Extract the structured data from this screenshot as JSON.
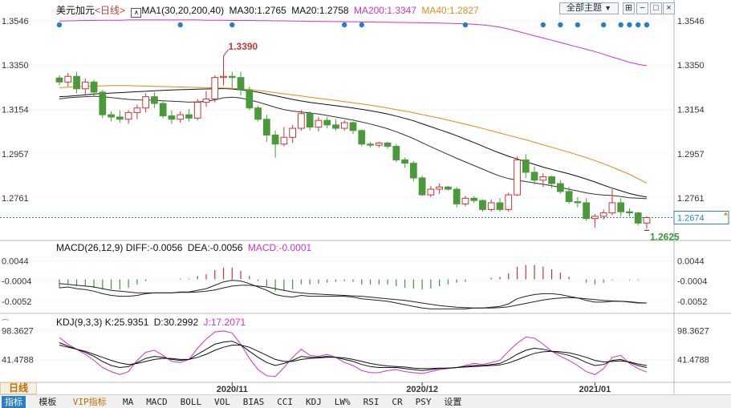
{
  "colors": {
    "up": "#cc3333",
    "down": "#4a9a3a",
    "ma1": "#111111",
    "ma30": "#111111",
    "ma20": "#333333",
    "ma200": "#cc33cc",
    "ma40": "#e08a1e",
    "diff": "#222222",
    "dea": "#222222",
    "macd_up": "#cc3333",
    "macd_down": "#3a9a3a",
    "k": "#111111",
    "d": "#111111",
    "j": "#cc33cc",
    "event_dot": "#2a7ec6",
    "last_price_box": "#2a7ec6",
    "highlight_label": "#c23b3b",
    "low_label": "#3a9a3a",
    "grid": "#dddddd"
  },
  "header": {
    "symbol": "美元加元",
    "period": "<日线>",
    "ma_main": "MA1(30,20,200,40)",
    "ma30": "MA30:1.2765",
    "ma20": "MA20:1.2758",
    "ma200": "MA200:1.3347",
    "ma40": "MA40:1.2827",
    "theme_select": "全部主题",
    "theme_arrow": "▼"
  },
  "macd_header": {
    "title": "MACD(26,12,9)",
    "diff": "DIFF:-0.0056",
    "dea": "DEA:-0.0056",
    "macd": "MACD:-0.0001"
  },
  "kdj_header": {
    "title": "KDJ(9,3,3)",
    "k": "K:25.9351",
    "d": "D:30.2992",
    "j": "J:17.2071"
  },
  "period_badge": "日线",
  "bottom_tabs": [
    "指标",
    "模板",
    "VIP指标",
    "MA",
    "MACD",
    "BOLL",
    "VOL",
    "BIAS",
    "CCI",
    "KDJ",
    "LW%",
    "RSI",
    "CR",
    "PSY",
    "设置"
  ],
  "chart_data": {
    "type": "candlestick",
    "title": "美元加元",
    "x_labels": [
      "2020/11",
      "2020/12",
      "2021/01"
    ],
    "price_axis": [
      "1.3546",
      "1.3350",
      "1.3154",
      "1.2957",
      "1.2761"
    ],
    "price_ylim": [
      1.258,
      1.361
    ],
    "last_price": "1.2674",
    "high_label": "1.3390",
    "low_label": "1.2625",
    "candles": [
      [
        1.3293,
        1.3305,
        1.326,
        1.3275
      ],
      [
        1.3275,
        1.3315,
        1.3255,
        1.33
      ],
      [
        1.33,
        1.332,
        1.3225,
        1.3245
      ],
      [
        1.3245,
        1.329,
        1.3215,
        1.3275
      ],
      [
        1.3275,
        1.3285,
        1.321,
        1.323
      ],
      [
        1.323,
        1.324,
        1.3115,
        1.313
      ],
      [
        1.313,
        1.3145,
        1.31,
        1.312
      ],
      [
        1.312,
        1.315,
        1.3095,
        1.311
      ],
      [
        1.311,
        1.315,
        1.309,
        1.314
      ],
      [
        1.314,
        1.3175,
        1.311,
        1.316
      ],
      [
        1.316,
        1.3225,
        1.314,
        1.321
      ],
      [
        1.321,
        1.323,
        1.316,
        1.318
      ],
      [
        1.318,
        1.3195,
        1.3115,
        1.3125
      ],
      [
        1.3125,
        1.315,
        1.309,
        1.311
      ],
      [
        1.311,
        1.3145,
        1.3095,
        1.313
      ],
      [
        1.313,
        1.3155,
        1.31,
        1.3115
      ],
      [
        1.3115,
        1.32,
        1.3105,
        1.3185
      ],
      [
        1.3185,
        1.3235,
        1.3165,
        1.32
      ],
      [
        1.32,
        1.3305,
        1.3185,
        1.3295
      ],
      [
        1.3295,
        1.339,
        1.326,
        1.33
      ],
      [
        1.33,
        1.332,
        1.325,
        1.3295
      ],
      [
        1.3295,
        1.332,
        1.3215,
        1.324
      ],
      [
        1.324,
        1.3255,
        1.315,
        1.316
      ],
      [
        1.316,
        1.317,
        1.31,
        1.311
      ],
      [
        1.311,
        1.313,
        1.301,
        1.304
      ],
      [
        1.304,
        1.306,
        1.294,
        1.3
      ],
      [
        1.3,
        1.3075,
        1.299,
        1.303
      ],
      [
        1.303,
        1.3085,
        1.3005,
        1.307
      ],
      [
        1.307,
        1.315,
        1.306,
        1.3135
      ],
      [
        1.3135,
        1.3145,
        1.306,
        1.3075
      ],
      [
        1.3075,
        1.312,
        1.3055,
        1.3105
      ],
      [
        1.3105,
        1.312,
        1.307,
        1.3085
      ],
      [
        1.3085,
        1.311,
        1.306,
        1.307
      ],
      [
        1.307,
        1.3105,
        1.306,
        1.3095
      ],
      [
        1.3095,
        1.31,
        1.3045,
        1.306
      ],
      [
        1.306,
        1.3065,
        1.299,
        1.3
      ],
      [
        1.3,
        1.301,
        1.2985,
        1.2995
      ],
      [
        1.2995,
        1.301,
        1.2985,
        1.3005
      ],
      [
        1.3005,
        1.301,
        1.298,
        1.299
      ],
      [
        1.299,
        1.3,
        1.292,
        1.293
      ],
      [
        1.293,
        1.294,
        1.2895,
        1.2915
      ],
      [
        1.2915,
        1.2925,
        1.2835,
        1.285
      ],
      [
        1.285,
        1.286,
        1.277,
        1.2775
      ],
      [
        1.2775,
        1.2815,
        1.2765,
        1.28
      ],
      [
        1.28,
        1.2825,
        1.278,
        1.281
      ],
      [
        1.281,
        1.2815,
        1.2795,
        1.28
      ],
      [
        1.28,
        1.281,
        1.272,
        1.2735
      ],
      [
        1.2735,
        1.277,
        1.2725,
        1.276
      ],
      [
        1.276,
        1.277,
        1.274,
        1.275
      ],
      [
        1.275,
        1.2755,
        1.27,
        1.271
      ],
      [
        1.271,
        1.2755,
        1.27,
        1.274
      ],
      [
        1.274,
        1.276,
        1.27,
        1.271
      ],
      [
        1.271,
        1.2785,
        1.27,
        1.2775
      ],
      [
        1.2775,
        1.2945,
        1.277,
        1.293
      ],
      [
        1.293,
        1.2955,
        1.285,
        1.2875
      ],
      [
        1.2875,
        1.29,
        1.282,
        1.284
      ],
      [
        1.284,
        1.287,
        1.281,
        1.2855
      ],
      [
        1.2855,
        1.286,
        1.2805,
        1.2825
      ],
      [
        1.2825,
        1.284,
        1.278,
        1.279
      ],
      [
        1.279,
        1.281,
        1.2735,
        1.2745
      ],
      [
        1.2745,
        1.2765,
        1.272,
        1.274
      ],
      [
        1.274,
        1.276,
        1.266,
        1.267
      ],
      [
        1.267,
        1.269,
        1.263,
        1.268
      ],
      [
        1.268,
        1.271,
        1.2665,
        1.2695
      ],
      [
        1.2695,
        1.28,
        1.2685,
        1.274
      ],
      [
        1.274,
        1.276,
        1.268,
        1.27
      ],
      [
        1.27,
        1.2715,
        1.268,
        1.2695
      ],
      [
        1.2695,
        1.27,
        1.264,
        1.265
      ],
      [
        1.265,
        1.268,
        1.2625,
        1.2674
      ]
    ],
    "ma_lines": {
      "MA30": [
        1.321,
        1.3212,
        1.3215,
        1.3218,
        1.3222,
        1.3224,
        1.3226,
        1.3228,
        1.323,
        1.3232,
        1.3234,
        1.3236,
        1.3238,
        1.324,
        1.3241,
        1.3242,
        1.3243,
        1.3244,
        1.3245,
        1.3246,
        1.3244,
        1.324,
        1.3236,
        1.323,
        1.3222,
        1.3214,
        1.3206,
        1.3198,
        1.3191,
        1.3185,
        1.318,
        1.3175,
        1.317,
        1.3165,
        1.316,
        1.3154,
        1.3148,
        1.3141,
        1.3133,
        1.3124,
        1.3114,
        1.3103,
        1.309,
        1.3077,
        1.3064,
        1.3051,
        1.3037,
        1.3022,
        1.3007,
        1.2991,
        1.2975,
        1.296,
        1.2946,
        1.2934,
        1.2922,
        1.291,
        1.2898,
        1.2888,
        1.2878,
        1.2868,
        1.2857,
        1.2845,
        1.2832,
        1.2818,
        1.2805,
        1.2793,
        1.2781,
        1.2772,
        1.2765
      ],
      "MA20": [
        1.32,
        1.3205,
        1.3208,
        1.321,
        1.3212,
        1.321,
        1.3206,
        1.3202,
        1.3198,
        1.3196,
        1.3195,
        1.3194,
        1.3192,
        1.319,
        1.3188,
        1.3186,
        1.3187,
        1.319,
        1.3196,
        1.3205,
        1.3208,
        1.3204,
        1.3196,
        1.3186,
        1.3175,
        1.3163,
        1.3153,
        1.3146,
        1.3142,
        1.3138,
        1.3133,
        1.3127,
        1.312,
        1.3113,
        1.3106,
        1.3098,
        1.3089,
        1.3079,
        1.3068,
        1.3055,
        1.304,
        1.3024,
        1.3006,
        1.2988,
        1.2971,
        1.2954,
        1.2937,
        1.2921,
        1.2905,
        1.2889,
        1.2873,
        1.2858,
        1.2847,
        1.284,
        1.2834,
        1.2828,
        1.2822,
        1.2815,
        1.2808,
        1.28,
        1.2792,
        1.2784,
        1.2778,
        1.2774,
        1.2772,
        1.2768,
        1.2762,
        1.276,
        1.2758
      ],
      "MA200": [
        1.3545,
        1.3546,
        1.3547,
        1.3548,
        1.3548,
        1.3549,
        1.3549,
        1.3549,
        1.355,
        1.355,
        1.355,
        1.355,
        1.355,
        1.355,
        1.355,
        1.355,
        1.355,
        1.3549,
        1.3549,
        1.3549,
        1.3548,
        1.3548,
        1.3548,
        1.3547,
        1.3547,
        1.3546,
        1.3546,
        1.3545,
        1.3545,
        1.3544,
        1.3544,
        1.3543,
        1.3543,
        1.3542,
        1.3542,
        1.3541,
        1.3541,
        1.354,
        1.354,
        1.3539,
        1.3539,
        1.3538,
        1.3538,
        1.3537,
        1.3536,
        1.3535,
        1.3534,
        1.3533,
        1.3531,
        1.3528,
        1.3524,
        1.3518,
        1.351,
        1.35,
        1.349,
        1.348,
        1.347,
        1.346,
        1.345,
        1.344,
        1.343,
        1.342,
        1.341,
        1.3398,
        1.3386,
        1.3374,
        1.3362,
        1.3354,
        1.3347
      ],
      "MA40": [
        1.325,
        1.3252,
        1.3254,
        1.3256,
        1.3257,
        1.3258,
        1.3259,
        1.3259,
        1.3259,
        1.3258,
        1.3257,
        1.3256,
        1.3255,
        1.3254,
        1.3253,
        1.3252,
        1.3251,
        1.325,
        1.3249,
        1.3248,
        1.3247,
        1.3245,
        1.3242,
        1.3238,
        1.3233,
        1.3228,
        1.3223,
        1.3218,
        1.3213,
        1.3208,
        1.3203,
        1.3198,
        1.3193,
        1.3188,
        1.3183,
        1.3178,
        1.3172,
        1.3166,
        1.316,
        1.3153,
        1.3146,
        1.3139,
        1.3131,
        1.3123,
        1.3115,
        1.3106,
        1.3097,
        1.3088,
        1.3079,
        1.3069,
        1.3059,
        1.3049,
        1.3039,
        1.3029,
        1.3019,
        1.3008,
        1.2997,
        1.2986,
        1.2975,
        1.2964,
        1.2952,
        1.294,
        1.2927,
        1.2913,
        1.2898,
        1.2882,
        1.2866,
        1.2847,
        1.2827
      ]
    },
    "macd": {
      "axis": [
        "0.0044",
        "-0.0004",
        "-0.0052"
      ],
      "ylim": [
        -0.0075,
        0.0058
      ],
      "diff": [
        -0.002,
        -0.0018,
        -0.0022,
        -0.0024,
        -0.0028,
        -0.0034,
        -0.0038,
        -0.004,
        -0.004,
        -0.0038,
        -0.0034,
        -0.0032,
        -0.0032,
        -0.0032,
        -0.003,
        -0.003,
        -0.0026,
        -0.0022,
        -0.0014,
        -0.0006,
        -0.0002,
        -0.0004,
        -0.001,
        -0.0018,
        -0.0026,
        -0.0036,
        -0.004,
        -0.0042,
        -0.0038,
        -0.004,
        -0.004,
        -0.004,
        -0.004,
        -0.004,
        -0.0042,
        -0.0046,
        -0.0048,
        -0.005,
        -0.0052,
        -0.0056,
        -0.006,
        -0.0064,
        -0.0068,
        -0.007,
        -0.007,
        -0.007,
        -0.007,
        -0.007,
        -0.0068,
        -0.0068,
        -0.0066,
        -0.0064,
        -0.0058,
        -0.0046,
        -0.004,
        -0.0036,
        -0.0034,
        -0.0034,
        -0.0036,
        -0.004,
        -0.0044,
        -0.005,
        -0.0054,
        -0.0054,
        -0.0052,
        -0.0052,
        -0.0054,
        -0.0056,
        -0.0056
      ],
      "dea": [
        -0.001,
        -0.0012,
        -0.0014,
        -0.0016,
        -0.0018,
        -0.0022,
        -0.0026,
        -0.0028,
        -0.003,
        -0.0032,
        -0.0032,
        -0.0032,
        -0.0032,
        -0.0032,
        -0.0031,
        -0.0031,
        -0.003,
        -0.0028,
        -0.0025,
        -0.002,
        -0.0016,
        -0.0014,
        -0.0014,
        -0.0016,
        -0.0018,
        -0.0022,
        -0.0026,
        -0.003,
        -0.0032,
        -0.0034,
        -0.0035,
        -0.0036,
        -0.0037,
        -0.0038,
        -0.0039,
        -0.004,
        -0.0042,
        -0.0044,
        -0.0046,
        -0.0048,
        -0.005,
        -0.0053,
        -0.0056,
        -0.0059,
        -0.0062,
        -0.0064,
        -0.0066,
        -0.0067,
        -0.0068,
        -0.0068,
        -0.0068,
        -0.0067,
        -0.0065,
        -0.0061,
        -0.0057,
        -0.0053,
        -0.0049,
        -0.0046,
        -0.0044,
        -0.0043,
        -0.0044,
        -0.0046,
        -0.0048,
        -0.005,
        -0.0051,
        -0.0052,
        -0.0053,
        -0.0055,
        -0.0056
      ]
    },
    "kdj": {
      "axis": [
        "98.3627",
        "41.4788"
      ],
      "ylim": [
        0,
        112
      ],
      "k": [
        75,
        68,
        62,
        56,
        48,
        38,
        30,
        26,
        28,
        36,
        44,
        48,
        46,
        42,
        40,
        42,
        52,
        62,
        72,
        76,
        78,
        70,
        58,
        46,
        36,
        30,
        34,
        40,
        48,
        46,
        46,
        48,
        46,
        42,
        38,
        32,
        28,
        26,
        26,
        26,
        24,
        22,
        20,
        22,
        24,
        25,
        26,
        28,
        30,
        30,
        32,
        34,
        42,
        52,
        60,
        64,
        62,
        58,
        54,
        50,
        44,
        36,
        30,
        32,
        40,
        42,
        36,
        30,
        26
      ],
      "d": [
        70,
        66,
        62,
        58,
        52,
        46,
        40,
        35,
        32,
        34,
        38,
        42,
        44,
        44,
        42,
        42,
        46,
        52,
        60,
        66,
        70,
        70,
        66,
        58,
        50,
        42,
        38,
        38,
        42,
        44,
        45,
        46,
        46,
        45,
        42,
        38,
        34,
        31,
        29,
        28,
        27,
        25,
        24,
        24,
        25,
        25,
        26,
        27,
        28,
        29,
        30,
        31,
        35,
        41,
        48,
        54,
        57,
        58,
        57,
        55,
        51,
        46,
        40,
        37,
        38,
        39,
        37,
        33,
        30
      ],
      "j": [
        85,
        72,
        62,
        52,
        40,
        26,
        18,
        12,
        18,
        40,
        56,
        60,
        50,
        38,
        36,
        42,
        64,
        82,
        96,
        98,
        94,
        72,
        44,
        22,
        10,
        8,
        26,
        46,
        62,
        50,
        48,
        52,
        46,
        36,
        30,
        20,
        16,
        16,
        20,
        22,
        18,
        16,
        14,
        18,
        22,
        24,
        26,
        30,
        34,
        32,
        36,
        40,
        58,
        74,
        86,
        84,
        72,
        58,
        48,
        40,
        30,
        18,
        12,
        24,
        46,
        50,
        34,
        24,
        17
      ]
    }
  }
}
